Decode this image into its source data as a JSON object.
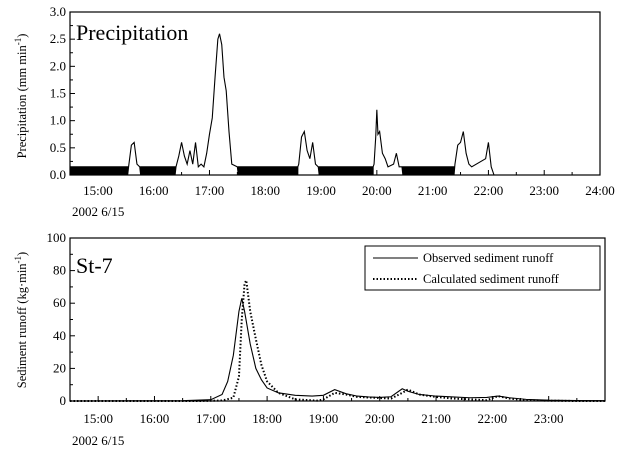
{
  "chart_data": [
    {
      "type": "line",
      "title": "Precipitation",
      "ylabel": "Precipitation (mm min",
      "ylabel_sup": "-1",
      "ylabel_close": ")",
      "date_label": "2002 6/15",
      "xlim_hours": [
        14.5,
        24.0
      ],
      "ylim": [
        0,
        3.0
      ],
      "x_ticks": [
        "15:00",
        "16:00",
        "17:00",
        "18:00",
        "19:00",
        "20:00",
        "21:00",
        "22:00",
        "23:00",
        "24:00"
      ],
      "x_tick_hours": [
        15,
        16,
        17,
        18,
        19,
        20,
        21,
        22,
        23,
        24
      ],
      "y_ticks": [
        "0.0",
        "0.5",
        "1.0",
        "1.5",
        "2.0",
        "2.5",
        "3.0"
      ],
      "y_tick_values": [
        0,
        0.5,
        1.0,
        1.5,
        2.0,
        2.5,
        3.0
      ],
      "series": [
        {
          "name": "",
          "style": "solid",
          "x_hours": [
            14.5,
            15.55,
            15.6,
            15.65,
            15.7,
            15.75,
            16.4,
            16.45,
            16.5,
            16.55,
            16.6,
            16.65,
            16.7,
            16.75,
            16.8,
            16.85,
            16.9,
            16.95,
            17.0,
            17.05,
            17.1,
            17.15,
            17.18,
            17.22,
            17.26,
            17.3,
            17.35,
            17.4,
            17.5,
            18.6,
            18.65,
            18.7,
            18.75,
            18.8,
            18.85,
            18.9,
            18.95,
            19.95,
            19.98,
            20.0,
            20.02,
            20.05,
            20.1,
            20.15,
            20.2,
            20.3,
            20.35,
            20.4,
            20.45,
            21.4,
            21.45,
            21.5,
            21.55,
            21.6,
            21.65,
            21.7,
            21.95,
            22.0,
            22.05,
            22.1
          ],
          "values": [
            0.15,
            0.15,
            0.55,
            0.6,
            0.2,
            0.15,
            0.15,
            0.35,
            0.6,
            0.35,
            0.2,
            0.45,
            0.2,
            0.6,
            0.15,
            0.2,
            0.15,
            0.4,
            0.75,
            1.05,
            1.8,
            2.5,
            2.6,
            2.4,
            1.8,
            1.55,
            0.8,
            0.2,
            0.15,
            0.2,
            0.7,
            0.8,
            0.45,
            0.3,
            0.6,
            0.2,
            0.15,
            0.2,
            0.7,
            1.2,
            0.75,
            0.8,
            0.4,
            0.3,
            0.15,
            0.2,
            0.4,
            0.15,
            0.15,
            0.2,
            0.55,
            0.6,
            0.8,
            0.4,
            0.2,
            0.15,
            0.3,
            0.6,
            0.15,
            0.0
          ],
          "baseline_noise": [
            0.0,
            0.15
          ]
        }
      ]
    },
    {
      "type": "line",
      "title": "St-7",
      "ylabel": "Sediment runoff (kg·min",
      "ylabel_sup": "-1",
      "ylabel_close": ")",
      "date_label": "2002 6/15",
      "xlim_hours": [
        14.5,
        24.0
      ],
      "ylim": [
        0,
        100
      ],
      "x_ticks": [
        "15:00",
        "16:00",
        "17:00",
        "18:00",
        "19:00",
        "20:00",
        "21:00",
        "22:00",
        "23:00"
      ],
      "x_tick_hours": [
        15,
        16,
        17,
        18,
        19,
        20,
        21,
        22,
        23
      ],
      "y_ticks": [
        "0",
        "20",
        "40",
        "60",
        "80",
        "100"
      ],
      "y_tick_values": [
        0,
        20,
        40,
        60,
        80,
        100
      ],
      "legend_position": "top-right",
      "series": [
        {
          "name": "Observed sediment runoff",
          "style": "solid",
          "x_hours": [
            14.5,
            16.5,
            17.0,
            17.2,
            17.3,
            17.4,
            17.5,
            17.55,
            17.6,
            17.7,
            17.8,
            17.9,
            18.0,
            18.2,
            18.5,
            18.8,
            19.0,
            19.2,
            19.4,
            19.6,
            19.8,
            20.0,
            20.2,
            20.4,
            20.5,
            20.7,
            21.0,
            21.3,
            21.6,
            21.9,
            22.1,
            22.3,
            22.6,
            23.0,
            23.5,
            24.0
          ],
          "values": [
            0,
            0.2,
            0.8,
            4,
            12,
            28,
            55,
            63,
            55,
            35,
            20,
            13,
            8,
            5,
            3.5,
            3,
            3.5,
            7,
            4.5,
            3,
            2.5,
            2.2,
            2.6,
            7.5,
            6,
            4,
            3,
            2.5,
            2,
            2.2,
            3,
            2,
            1,
            0.5,
            0.3,
            0.2
          ]
        },
        {
          "name": "Calculated sediment runoff",
          "style": "dotted",
          "x_hours": [
            14.5,
            16.8,
            17.2,
            17.4,
            17.5,
            17.55,
            17.6,
            17.63,
            17.7,
            17.8,
            17.9,
            18.0,
            18.2,
            18.5,
            18.9,
            19.0,
            19.2,
            19.4,
            19.6,
            19.9,
            20.2,
            20.4,
            20.5,
            20.7,
            21.0,
            21.3,
            21.6,
            21.9,
            22.1,
            22.3,
            22.6,
            23.0,
            23.5,
            24.0
          ],
          "values": [
            0,
            0,
            0.3,
            2,
            15,
            50,
            72,
            74,
            55,
            38,
            22,
            12,
            5,
            1,
            0.2,
            1,
            5,
            4,
            2.5,
            2,
            1.5,
            5,
            7,
            4,
            2.5,
            1.5,
            1,
            0.5,
            3,
            1.5,
            0.5,
            0.2,
            0,
            0
          ]
        }
      ]
    }
  ]
}
